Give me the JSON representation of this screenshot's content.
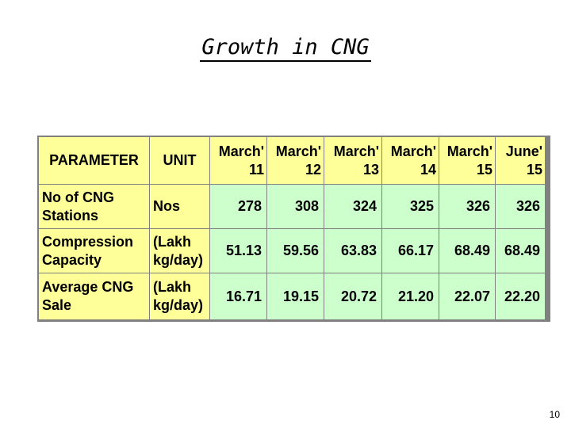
{
  "slide": {
    "title": "Growth in CNG",
    "page_number": "10"
  },
  "table": {
    "header": {
      "parameter": "PARAMETER",
      "unit": "UNIT",
      "periods": [
        {
          "line1": "March'",
          "line2": "11"
        },
        {
          "line1": "March'",
          "line2": "12"
        },
        {
          "line1": "March'",
          "line2": "13"
        },
        {
          "line1": "March'",
          "line2": "14"
        },
        {
          "line1": "March'",
          "line2": "15"
        },
        {
          "line1": "June'",
          "line2": "15"
        }
      ]
    },
    "rows": [
      {
        "parameter_line1": "No of CNG",
        "parameter_line2": "Stations",
        "unit_line1": "Nos",
        "unit_line2": "",
        "values": [
          "278",
          "308",
          "324",
          "325",
          "326",
          "326"
        ]
      },
      {
        "parameter_line1": "Compression",
        "parameter_line2": "Capacity",
        "unit_line1": "(Lakh",
        "unit_line2": "kg/day)",
        "values": [
          "51.13",
          "59.56",
          "63.83",
          "66.17",
          "68.49",
          "68.49"
        ]
      },
      {
        "parameter_line1": "Average CNG",
        "parameter_line2": "Sale",
        "unit_line1": "(Lakh",
        "unit_line2": "kg/day)",
        "values": [
          "16.71",
          "19.15",
          "20.72",
          "21.20",
          "22.07",
          "22.20"
        ]
      }
    ],
    "colors": {
      "label_cells": "#ffff99",
      "value_cells": "#ccffcc",
      "grid": "#808080"
    }
  }
}
